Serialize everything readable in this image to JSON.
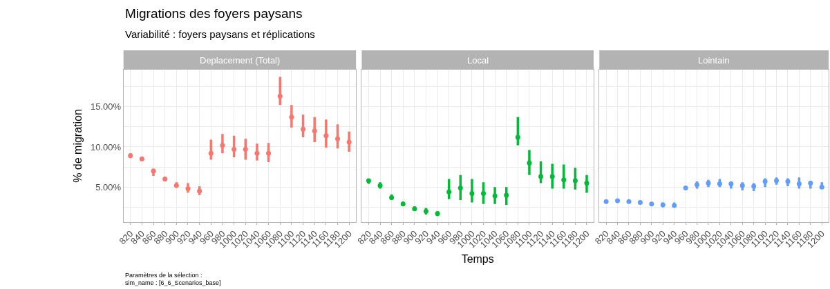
{
  "chart_data": [
    {
      "type": "scatter",
      "title": "Deplacement (Total)",
      "ylabel": "% de migration",
      "annotations": [
        "Migrations des foyers paysans",
        "Variabilité : foyers paysans et réplications",
        "Paramètres de la sélection :",
        "sim_name : [6_6_Scenarios_base]"
      ],
      "categories": [
        "820",
        "840",
        "860",
        "880",
        "900",
        "920",
        "940",
        "960",
        "980",
        "1000",
        "1020",
        "1040",
        "1060",
        "1080",
        "1100",
        "1120",
        "1140",
        "1160",
        "1180",
        "1200"
      ],
      "ylim": [
        0.65,
        19.6
      ],
      "yticks": [
        {
          "value": 2.5,
          "label": null
        },
        {
          "value": 5,
          "label": "5.00%"
        },
        {
          "value": 7.5,
          "label": null
        },
        {
          "value": 10,
          "label": "10.00%"
        },
        {
          "value": 12.5,
          "label": null
        },
        {
          "value": 15,
          "label": "15.00%"
        },
        {
          "value": 17.5,
          "label": null
        }
      ],
      "grid": true,
      "marker": "circle",
      "series": [
        {
          "color": "#f8766d",
          "values": [
            8.9,
            8.5,
            7.0,
            6.0,
            5.2,
            4.8,
            4.5,
            9.2,
            10.2,
            9.7,
            9.7,
            9.2,
            9.2,
            16.3,
            13.7,
            12.2,
            12.0,
            11.4,
            11.0,
            10.6
          ],
          "errors": [
            [
              8.6,
              9.2
            ],
            [
              8.3,
              8.8
            ],
            [
              6.4,
              7.3
            ],
            [
              5.7,
              6.3
            ],
            [
              5.0,
              5.6
            ],
            [
              4.3,
              5.5
            ],
            [
              4.0,
              5.1
            ],
            [
              8.4,
              10.9
            ],
            [
              9.2,
              11.6
            ],
            [
              8.7,
              11.4
            ],
            [
              8.4,
              11.0
            ],
            [
              8.3,
              10.4
            ],
            [
              8.1,
              10.5
            ],
            [
              15.2,
              18.7
            ],
            [
              12.4,
              15.2
            ],
            [
              11.2,
              14.0
            ],
            [
              10.6,
              13.7
            ],
            [
              9.9,
              13.4
            ],
            [
              9.8,
              12.8
            ],
            [
              9.4,
              11.9
            ]
          ]
        }
      ]
    },
    {
      "type": "scatter",
      "title": "Local",
      "xlabel": "Temps",
      "categories": [
        "820",
        "840",
        "860",
        "880",
        "900",
        "920",
        "940",
        "960",
        "980",
        "1000",
        "1020",
        "1040",
        "1060",
        "1080",
        "1100",
        "1120",
        "1140",
        "1160",
        "1180",
        "1200"
      ],
      "ylim": [
        0.65,
        19.6
      ],
      "yticks": [
        {
          "value": 2.5,
          "label": null
        },
        {
          "value": 5,
          "label": null
        },
        {
          "value": 7.5,
          "label": null
        },
        {
          "value": 10,
          "label": null
        },
        {
          "value": 12.5,
          "label": null
        },
        {
          "value": 15,
          "label": null
        },
        {
          "value": 17.5,
          "label": null
        }
      ],
      "tick_labels": "x",
      "grid": true,
      "marker": "circle",
      "series": [
        {
          "color": "#00ba38",
          "values": [
            5.8,
            5.2,
            3.7,
            2.9,
            2.3,
            2.0,
            1.7,
            4.4,
            4.9,
            4.2,
            4.2,
            3.9,
            4.0,
            11.2,
            8.0,
            6.3,
            6.3,
            5.9,
            5.8,
            5.5
          ],
          "errors": [
            [
              5.4,
              6.0
            ],
            [
              4.8,
              5.6
            ],
            [
              3.4,
              4.1
            ],
            [
              2.7,
              3.2
            ],
            [
              2.1,
              2.6
            ],
            [
              1.6,
              2.4
            ],
            [
              1.4,
              2.0
            ],
            [
              3.5,
              6.0
            ],
            [
              3.4,
              6.5
            ],
            [
              3.1,
              6.0
            ],
            [
              2.9,
              5.6
            ],
            [
              2.9,
              5.0
            ],
            [
              2.8,
              5.0
            ],
            [
              10.2,
              13.7
            ],
            [
              6.5,
              9.6
            ],
            [
              5.5,
              8.2
            ],
            [
              4.8,
              7.9
            ],
            [
              4.8,
              7.8
            ],
            [
              4.7,
              7.4
            ],
            [
              4.3,
              6.5
            ]
          ]
        }
      ]
    },
    {
      "type": "scatter",
      "title": "Lointain",
      "categories": [
        "820",
        "840",
        "860",
        "880",
        "900",
        "920",
        "940",
        "960",
        "980",
        "1000",
        "1020",
        "1040",
        "1060",
        "1080",
        "1100",
        "1120",
        "1140",
        "1160",
        "1180",
        "1200"
      ],
      "ylim": [
        0.65,
        19.6
      ],
      "yticks": [
        {
          "value": 2.5,
          "label": null
        },
        {
          "value": 5,
          "label": null
        },
        {
          "value": 7.5,
          "label": null
        },
        {
          "value": 10,
          "label": null
        },
        {
          "value": 12.5,
          "label": null
        },
        {
          "value": 15,
          "label": null
        },
        {
          "value": 17.5,
          "label": null
        }
      ],
      "tick_labels": "x",
      "grid": true,
      "marker": "circle",
      "series": [
        {
          "color": "#619cff",
          "values": [
            3.2,
            3.3,
            3.2,
            3.1,
            2.9,
            2.8,
            2.7,
            4.9,
            5.3,
            5.5,
            5.4,
            5.4,
            5.2,
            5.1,
            5.7,
            5.8,
            5.7,
            5.4,
            5.5,
            5.0
          ],
          "errors": [
            [
              3.1,
              3.3
            ],
            [
              3.2,
              3.4
            ],
            [
              3.1,
              3.3
            ],
            [
              3.0,
              3.2
            ],
            [
              2.8,
              3.0
            ],
            [
              2.5,
              3.1
            ],
            [
              2.5,
              3.1
            ],
            [
              4.8,
              5.0
            ],
            [
              4.8,
              5.7
            ],
            [
              5.0,
              5.9
            ],
            [
              5.0,
              6.0
            ],
            [
              4.8,
              5.7
            ],
            [
              4.6,
              5.6
            ],
            [
              4.5,
              5.5
            ],
            [
              5.0,
              6.1
            ],
            [
              5.3,
              6.2
            ],
            [
              5.1,
              6.1
            ],
            [
              4.8,
              6.2
            ],
            [
              4.8,
              5.8
            ],
            [
              4.8,
              5.6
            ]
          ]
        }
      ]
    }
  ]
}
